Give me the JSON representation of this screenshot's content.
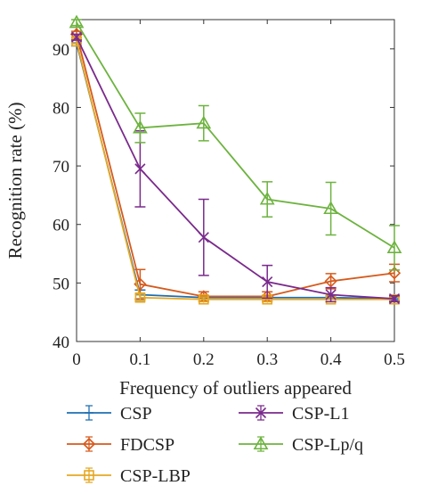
{
  "chart_data": {
    "type": "line",
    "title": "",
    "xlabel": "Frequency of outliers appeared",
    "ylabel": "Recognition rate (%)",
    "x": [
      0,
      0.1,
      0.2,
      0.3,
      0.4,
      0.5
    ],
    "x_ticks": [
      "0",
      "0.1",
      "0.2",
      "0.3",
      "0.4",
      "0.5"
    ],
    "y_ticks": [
      "40",
      "50",
      "60",
      "70",
      "80",
      "90"
    ],
    "xlim": [
      0,
      0.5
    ],
    "ylim": [
      40,
      95
    ],
    "grid": false,
    "legend_position": "bottom",
    "series": [
      {
        "name": "CSP",
        "color": "#1f6fb2",
        "marker": "dash",
        "values": [
          91.0,
          48.0,
          47.5,
          47.5,
          47.5,
          47.3
        ],
        "errors": [
          0.5,
          0.8,
          0.3,
          0.3,
          0.3,
          0.3
        ]
      },
      {
        "name": "FDCSP",
        "color": "#d65a1c",
        "marker": "diamond",
        "values": [
          92.5,
          49.8,
          47.7,
          47.7,
          50.3,
          51.7
        ],
        "errors": [
          0.5,
          2.5,
          0.8,
          0.8,
          1.3,
          1.5
        ]
      },
      {
        "name": "CSP-LBP",
        "color": "#e6a822",
        "marker": "square",
        "values": [
          91.3,
          47.5,
          47.2,
          47.2,
          47.2,
          47.2
        ],
        "errors": [
          0.4,
          0.6,
          0.4,
          0.4,
          0.4,
          0.4
        ]
      },
      {
        "name": "CSP-L1",
        "color": "#7a2a8c",
        "marker": "x",
        "values": [
          92.0,
          69.5,
          57.8,
          50.2,
          48.0,
          47.3
        ],
        "errors": [
          0.5,
          6.5,
          6.5,
          2.8,
          1.2,
          0.5
        ]
      },
      {
        "name": "CSP-Lp/q",
        "color": "#6db33f",
        "marker": "triangle",
        "values": [
          94.5,
          76.5,
          77.3,
          64.3,
          62.7,
          56.0
        ],
        "errors": [
          0.5,
          2.5,
          3.0,
          3.0,
          4.5,
          3.8
        ]
      }
    ]
  }
}
